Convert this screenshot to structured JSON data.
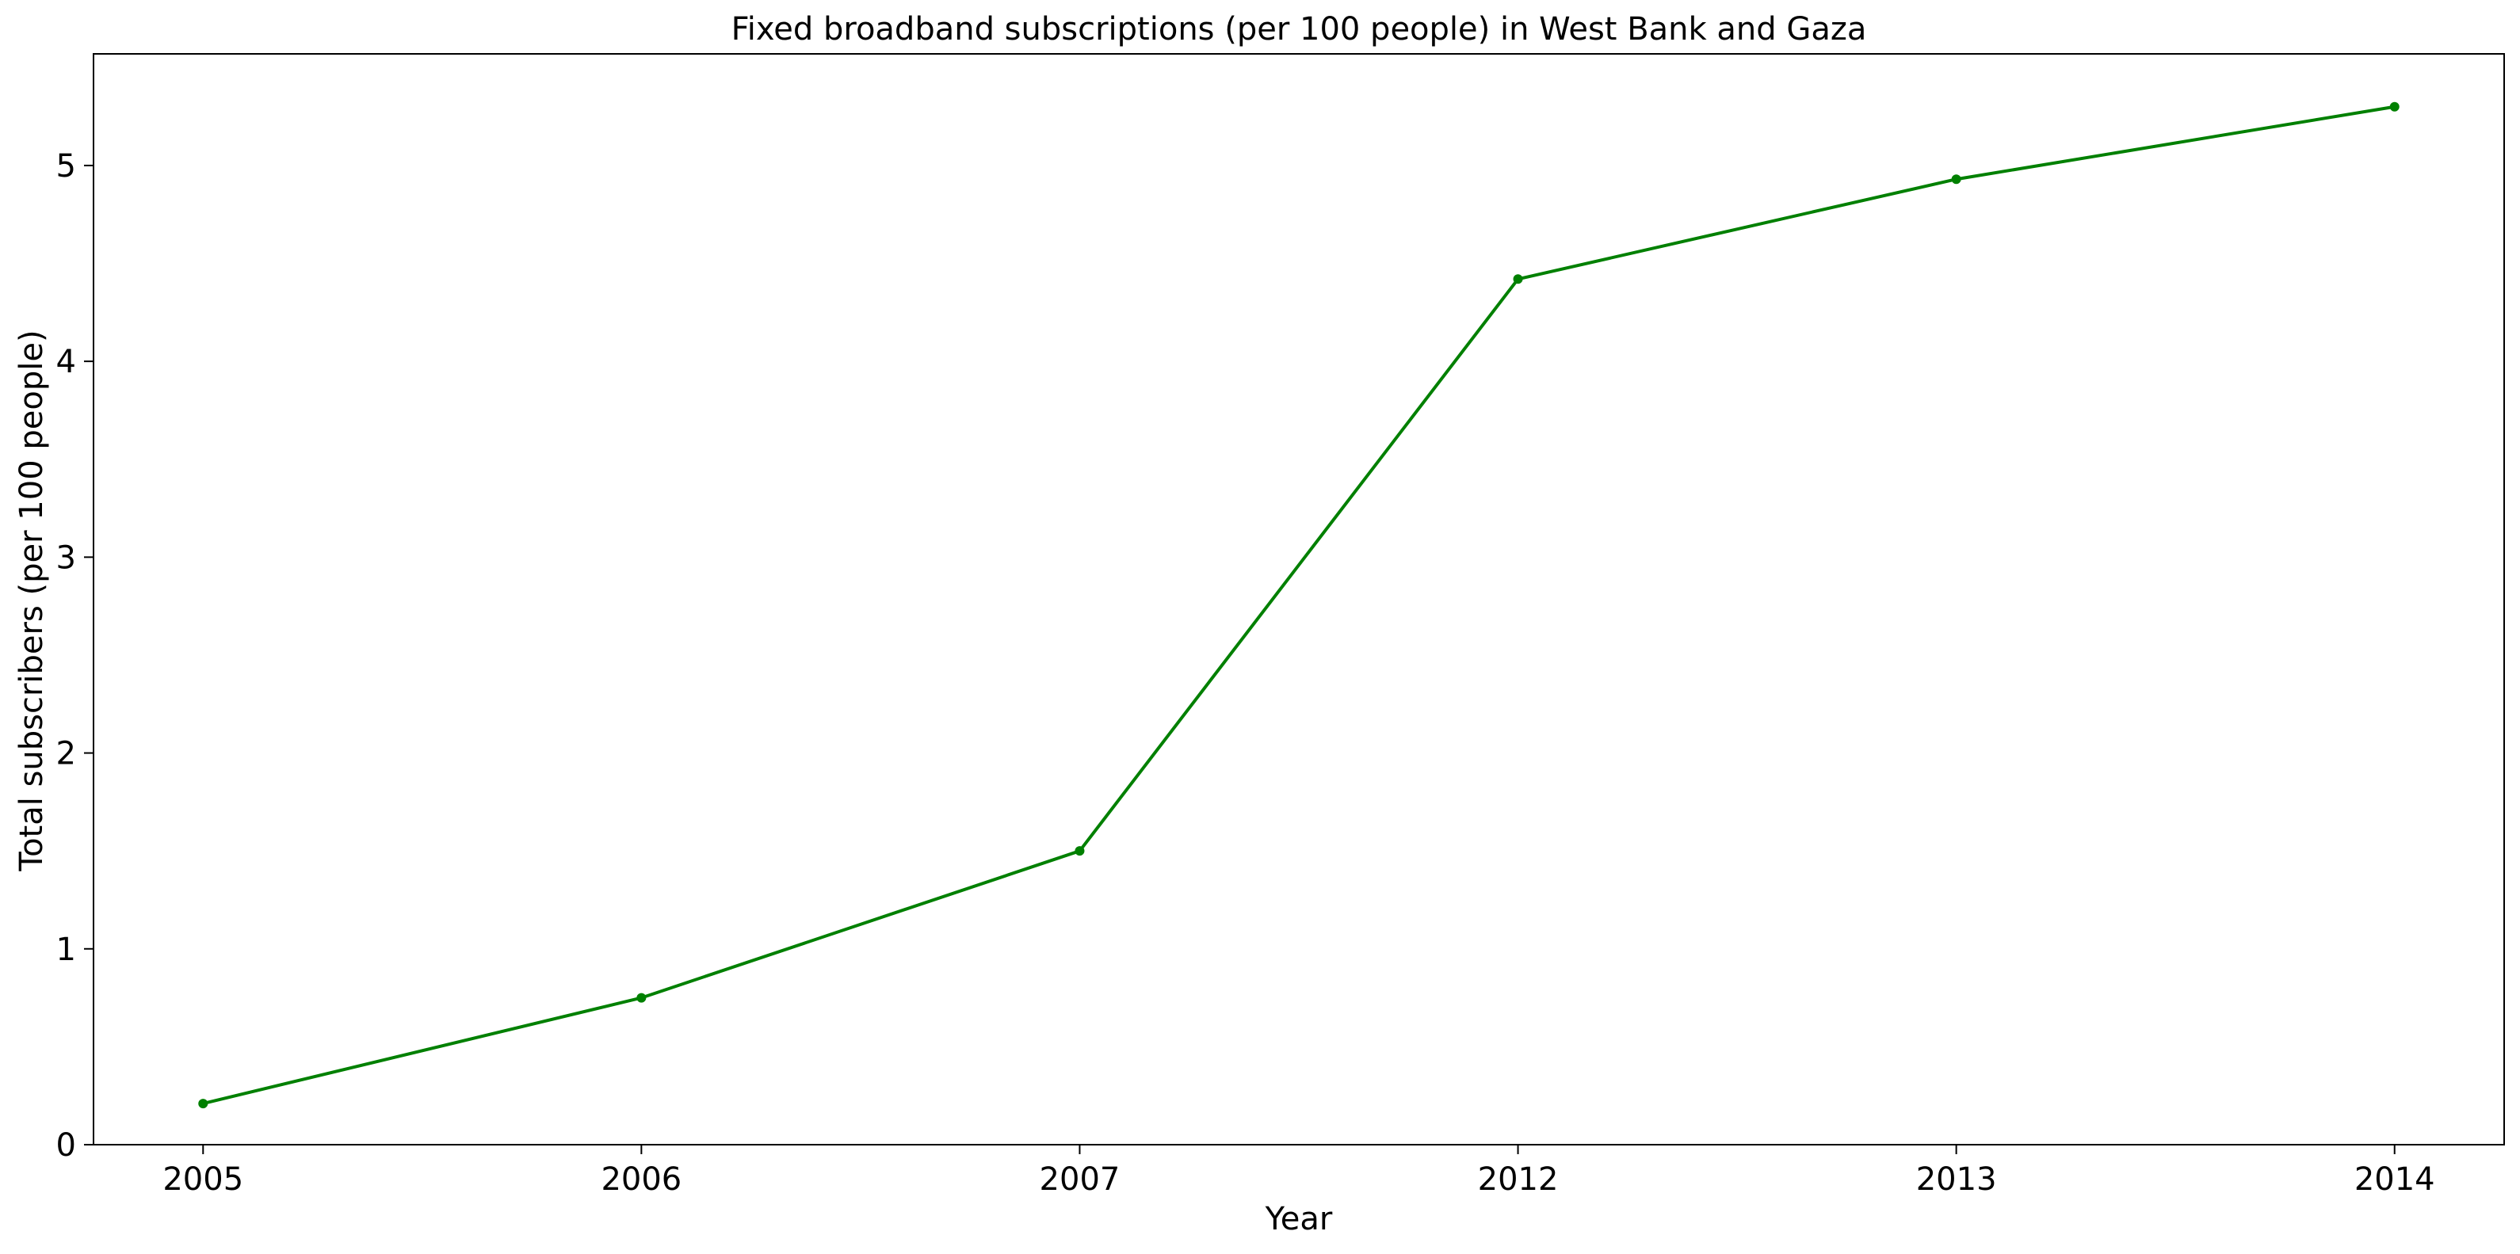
{
  "chart_data": {
    "type": "line",
    "title": "Fixed broadband subscriptions (per 100 people) in West Bank and Gaza",
    "xlabel": "Year",
    "ylabel": "Total subscribers (per 100 people)",
    "categories": [
      "2005",
      "2006",
      "2007",
      "2012",
      "2013",
      "2014"
    ],
    "series": [
      {
        "values": [
          0.21,
          0.75,
          1.5,
          4.42,
          4.93,
          5.3
        ]
      }
    ],
    "ylim": [
      0,
      5.57
    ],
    "yticks": [
      "0",
      "1",
      "2",
      "3",
      "4",
      "5"
    ],
    "grid": false,
    "legend": "none",
    "color": "#008000",
    "marker": "dot"
  }
}
